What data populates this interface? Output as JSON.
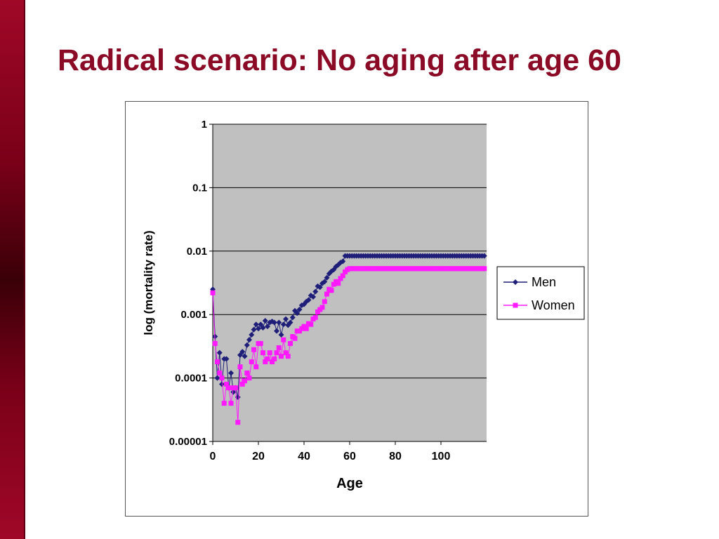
{
  "slide": {
    "title": "Radical scenario: No aging after age 60"
  },
  "colors": {
    "sidebar": "#8b0a25",
    "title": "#8b0a25",
    "plot_background": "#c0c0c0",
    "men": "#1f1f7a",
    "women": "#ff1aff"
  },
  "chart_data": {
    "type": "scatter",
    "xlabel": "Age",
    "ylabel": "log (mortality rate)",
    "xlim": [
      0,
      120
    ],
    "ylim": [
      1e-05,
      1
    ],
    "y_scale": "log",
    "x_ticks": [
      "0",
      "20",
      "40",
      "60",
      "80",
      "100"
    ],
    "y_ticks": [
      "1",
      "0.1",
      "0.01",
      "0.001",
      "0.0001",
      "0.00001"
    ],
    "grid": true,
    "legend_position": "right",
    "series": [
      {
        "name": "Men",
        "marker": "diamond",
        "x": [
          0,
          1,
          2,
          3,
          4,
          5,
          6,
          7,
          8,
          9,
          10,
          11,
          12,
          13,
          14,
          15,
          16,
          17,
          18,
          19,
          20,
          21,
          22,
          23,
          24,
          25,
          26,
          27,
          28,
          29,
          30,
          31,
          32,
          33,
          34,
          35,
          36,
          37,
          38,
          39,
          40,
          41,
          42,
          43,
          44,
          45,
          46,
          47,
          48,
          49,
          50,
          51,
          52,
          53,
          54,
          55,
          56,
          57,
          58,
          59,
          60,
          61,
          62,
          63,
          64,
          65,
          66,
          67,
          68,
          69,
          70,
          71,
          72,
          73,
          74,
          75,
          76,
          77,
          78,
          79,
          80,
          81,
          82,
          83,
          84,
          85,
          86,
          87,
          88,
          89,
          90,
          91,
          92,
          93,
          94,
          95,
          96,
          97,
          98,
          99,
          100,
          101,
          102,
          103,
          104,
          105,
          106,
          107,
          108,
          109,
          110,
          111,
          112,
          113,
          114,
          115,
          116,
          117,
          118,
          119
        ],
        "y": [
          0.0025,
          0.00045,
          0.0001,
          0.00025,
          8e-05,
          0.0002,
          0.0002,
          7e-05,
          0.00012,
          6e-05,
          7e-05,
          5e-05,
          0.00023,
          0.00026,
          0.00022,
          0.00033,
          0.0004,
          0.00048,
          0.00058,
          0.0007,
          0.0006,
          0.0007,
          0.00062,
          0.0008,
          0.00065,
          0.00075,
          0.00078,
          0.00075,
          0.00055,
          0.00075,
          0.00048,
          0.0007,
          0.00085,
          0.00068,
          0.00075,
          0.0009,
          0.00115,
          0.00105,
          0.0012,
          0.0014,
          0.00145,
          0.0016,
          0.0017,
          0.002,
          0.0019,
          0.0023,
          0.0028,
          0.0027,
          0.0031,
          0.0033,
          0.0038,
          0.0044,
          0.0048,
          0.0051,
          0.0057,
          0.0061,
          0.0066,
          0.0069,
          0.0084,
          0.0084,
          0.0084,
          0.0084,
          0.0084,
          0.0084,
          0.0084,
          0.0084,
          0.0084,
          0.0084,
          0.0084,
          0.0084,
          0.0084,
          0.0084,
          0.0084,
          0.0084,
          0.0084,
          0.0084,
          0.0084,
          0.0084,
          0.0084,
          0.0084,
          0.0084,
          0.0084,
          0.0084,
          0.0084,
          0.0084,
          0.0084,
          0.0084,
          0.0084,
          0.0084,
          0.0084,
          0.0084,
          0.0084,
          0.0084,
          0.0084,
          0.0084,
          0.0084,
          0.0084,
          0.0084,
          0.0084,
          0.0084,
          0.0084,
          0.0084,
          0.0084,
          0.0084,
          0.0084,
          0.0084,
          0.0084,
          0.0084,
          0.0084,
          0.0084,
          0.0084,
          0.0084,
          0.0084,
          0.0084,
          0.0084,
          0.0084,
          0.0084,
          0.0084,
          0.0084,
          0.0084
        ]
      },
      {
        "name": "Women",
        "marker": "square",
        "x": [
          0,
          1,
          2,
          3,
          4,
          5,
          6,
          7,
          8,
          9,
          10,
          11,
          12,
          13,
          14,
          15,
          16,
          17,
          18,
          19,
          20,
          21,
          22,
          23,
          24,
          25,
          26,
          27,
          28,
          29,
          30,
          31,
          32,
          33,
          34,
          35,
          36,
          37,
          38,
          39,
          40,
          41,
          42,
          43,
          44,
          45,
          46,
          47,
          48,
          49,
          50,
          51,
          52,
          53,
          54,
          55,
          56,
          57,
          58,
          59,
          60,
          61,
          62,
          63,
          64,
          65,
          66,
          67,
          68,
          69,
          70,
          71,
          72,
          73,
          74,
          75,
          76,
          77,
          78,
          79,
          80,
          81,
          82,
          83,
          84,
          85,
          86,
          87,
          88,
          89,
          90,
          91,
          92,
          93,
          94,
          95,
          96,
          97,
          98,
          99,
          100,
          101,
          102,
          103,
          104,
          105,
          106,
          107,
          108,
          109,
          110,
          111,
          112,
          113,
          114,
          115,
          116,
          117,
          118,
          119
        ],
        "y": [
          0.0022,
          0.00035,
          0.00018,
          0.00012,
          0.0001,
          4e-05,
          8e-05,
          7e-05,
          4e-05,
          7e-05,
          7e-05,
          2e-05,
          0.00015,
          8e-05,
          9e-05,
          0.00012,
          0.0001,
          0.00018,
          0.00028,
          0.00015,
          0.00035,
          0.00035,
          0.00025,
          0.00018,
          0.0002,
          0.00025,
          0.00018,
          0.0002,
          0.00025,
          0.0003,
          0.00022,
          0.0004,
          0.00025,
          0.00022,
          0.00035,
          0.00045,
          0.00042,
          0.00055,
          0.00055,
          0.0006,
          0.00065,
          0.0006,
          0.00072,
          0.0007,
          0.00085,
          0.0009,
          0.0011,
          0.0012,
          0.0013,
          0.0016,
          0.0021,
          0.0025,
          0.0024,
          0.003,
          0.0033,
          0.0031,
          0.0037,
          0.0041,
          0.0047,
          0.0051,
          0.0053,
          0.0053,
          0.0053,
          0.0053,
          0.0053,
          0.0053,
          0.0053,
          0.0053,
          0.0053,
          0.0053,
          0.0053,
          0.0053,
          0.0053,
          0.0053,
          0.0053,
          0.0053,
          0.0053,
          0.0053,
          0.0053,
          0.0053,
          0.0053,
          0.0053,
          0.0053,
          0.0053,
          0.0053,
          0.0053,
          0.0053,
          0.0053,
          0.0053,
          0.0053,
          0.0053,
          0.0053,
          0.0053,
          0.0053,
          0.0053,
          0.0053,
          0.0053,
          0.0053,
          0.0053,
          0.0053,
          0.0053,
          0.0053,
          0.0053,
          0.0053,
          0.0053,
          0.0053,
          0.0053,
          0.0053,
          0.0053,
          0.0053,
          0.0053,
          0.0053,
          0.0053,
          0.0053,
          0.0053,
          0.0053,
          0.0053,
          0.0053,
          0.0053,
          0.0053
        ]
      }
    ]
  }
}
